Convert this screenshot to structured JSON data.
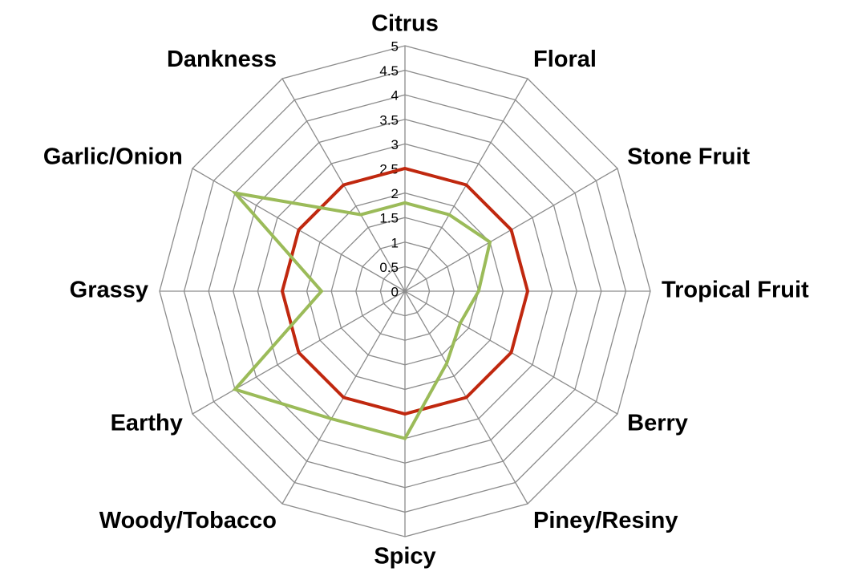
{
  "chart_data": {
    "type": "radar",
    "categories": [
      "Citrus",
      "Floral",
      "Stone Fruit",
      "Tropical Fruit",
      "Berry",
      "Piney/Resiny",
      "Spicy",
      "Woody/Tobacco",
      "Earthy",
      "Grassy",
      "Garlic/Onion",
      "Dankness"
    ],
    "series": [
      {
        "color": "#c0280f",
        "values": [
          2.5,
          2.5,
          2.5,
          2.5,
          2.5,
          2.5,
          2.5,
          2.5,
          2.5,
          2.5,
          2.5,
          2.5
        ]
      },
      {
        "color": "#9bbb59",
        "values": [
          1.8,
          1.8,
          2,
          1.5,
          1.3,
          1.7,
          3,
          3,
          4,
          1.7,
          4,
          1.8
        ]
      }
    ],
    "ylim": [
      0,
      5
    ],
    "yticks": [
      0,
      0.5,
      1,
      1.5,
      2,
      2.5,
      3,
      3.5,
      4,
      4.5,
      5
    ],
    "grid": true
  }
}
